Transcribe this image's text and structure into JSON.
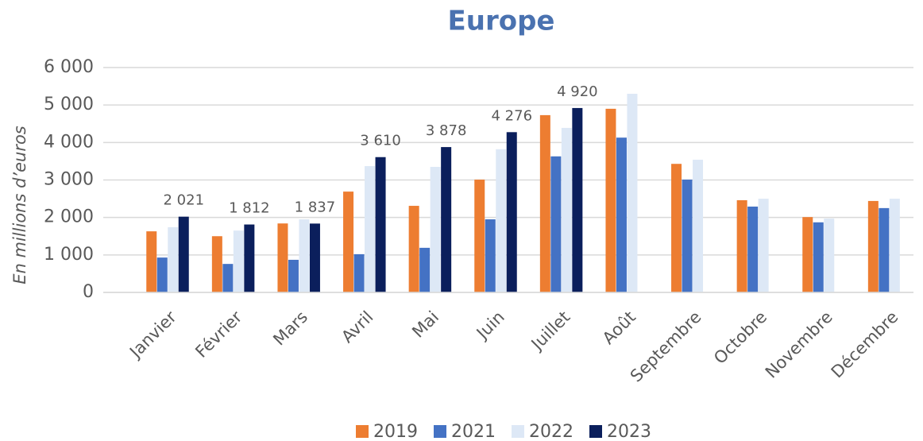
{
  "chart_data": {
    "type": "bar",
    "title": "Europe",
    "y_label": "En millions d’euros",
    "categories": [
      "Janvier",
      "Février",
      "Mars",
      "Avril",
      "Mai",
      "Juin",
      "Juillet",
      "Août",
      "Septembre",
      "Octobre",
      "Novembre",
      "Décembre"
    ],
    "series": [
      {
        "name": "2019",
        "color": "#ed7d31",
        "values": [
          1630,
          1500,
          1840,
          2690,
          2310,
          3010,
          4730,
          4900,
          3430,
          2460,
          2010,
          2440
        ]
      },
      {
        "name": "2021",
        "color": "#4472c4",
        "values": [
          930,
          760,
          870,
          1020,
          1190,
          1950,
          3630,
          4130,
          3010,
          2290,
          1870,
          2250
        ]
      },
      {
        "name": "2022",
        "color": "#dde8f6",
        "values": [
          1740,
          1650,
          1950,
          3370,
          3350,
          3820,
          4390,
          5300,
          3540,
          2500,
          1970,
          2500
        ]
      },
      {
        "name": "2023",
        "color": "#0b1f5c",
        "values": [
          2021,
          1812,
          1837,
          3610,
          3878,
          4276,
          4920,
          null,
          null,
          null,
          null,
          null
        ],
        "value_labels": [
          "2 021",
          "1 812",
          "1 837",
          "3 610",
          "3 878",
          "4 276",
          "4 920",
          null,
          null,
          null,
          null,
          null
        ]
      }
    ],
    "ylim": [
      0,
      6000
    ],
    "yticks": [
      0,
      {
        "value": 1000,
        "label": "1 000"
      },
      {
        "value": 2000,
        "label": "2 000"
      },
      {
        "value": 3000,
        "label": "3 000"
      },
      {
        "value": 4000,
        "label": "4 000"
      },
      {
        "value": 5000,
        "label": "5 000"
      },
      {
        "value": 6000,
        "label": "6 000"
      }
    ],
    "grid": true,
    "legend": "bottom"
  }
}
